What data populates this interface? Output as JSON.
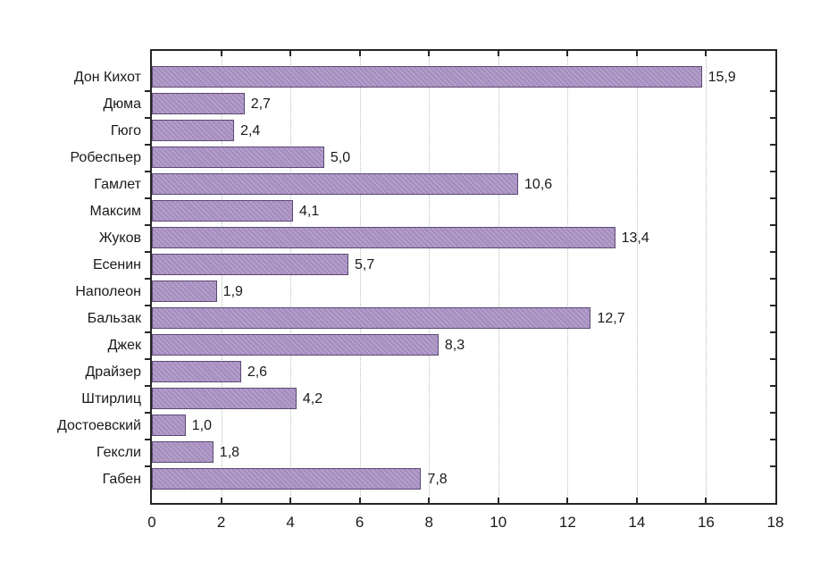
{
  "chart_data": {
    "type": "bar",
    "orientation": "horizontal",
    "categories": [
      "Дон Кихот",
      "Дюма",
      "Гюго",
      "Робеспьер",
      "Гамлет",
      "Максим",
      "Жуков",
      "Есенин",
      "Наполеон",
      "Бальзак",
      "Джек",
      "Драйзер",
      "Штирлиц",
      "Достоевский",
      "Гексли",
      "Габен"
    ],
    "values": [
      15.9,
      2.7,
      2.4,
      5.0,
      10.6,
      4.1,
      13.4,
      5.7,
      1.9,
      12.7,
      8.3,
      2.6,
      4.2,
      1.0,
      1.8,
      7.8
    ],
    "value_labels": [
      "15,9",
      "2,7",
      "2,4",
      "5,0",
      "10,6",
      "4,1",
      "13,4",
      "5,7",
      "1,9",
      "12,7",
      "8,3",
      "2,6",
      "4,2",
      "1,0",
      "1,8",
      "7,8"
    ],
    "x_ticks": [
      0,
      2,
      4,
      6,
      8,
      10,
      12,
      14,
      16,
      18
    ],
    "xlim": [
      0,
      18
    ],
    "grid": "vertical-dotted",
    "legend": "none"
  },
  "colors": {
    "bar_fill": "#a68fc0",
    "bar_hatch": "#bcaad0",
    "bar_border": "#5d4a74",
    "axis": "#262626",
    "grid": "#bdbdbd",
    "text": "#1a1a1a",
    "background": "#ffffff"
  }
}
